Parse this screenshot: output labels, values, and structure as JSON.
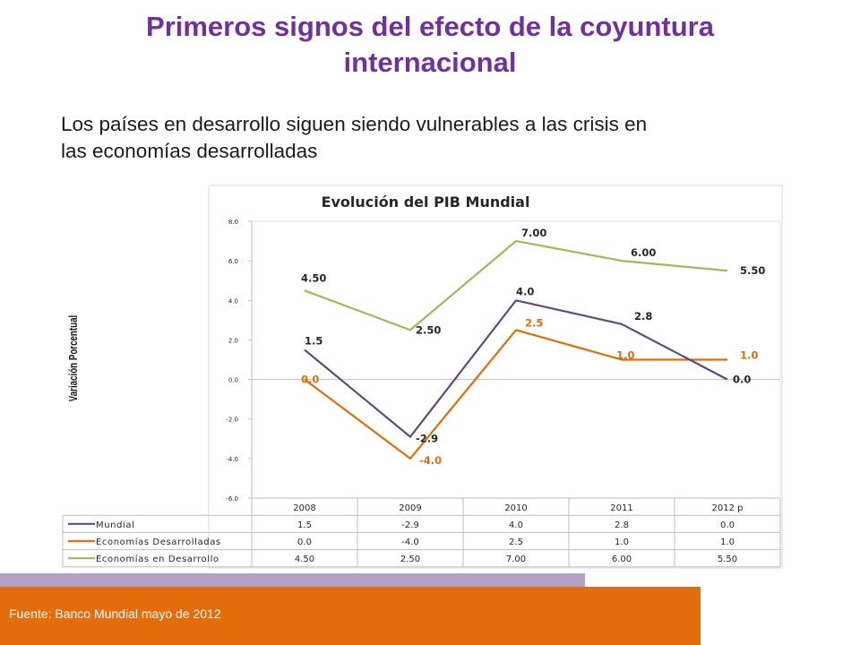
{
  "slide": {
    "title_line1": "Primeros signos del efecto de la coyuntura",
    "title_line2": "internacional",
    "subtitle_line1": "Los países en desarrollo siguen siendo vulnerables a las crisis en",
    "subtitle_line2": "las economías desarrolladas",
    "source": "Fuente:  Banco Mundial mayo de 2012"
  },
  "chart_data": {
    "type": "line",
    "title": "Evolución del PIB Mundial",
    "ylabel": "Variación Porcentual",
    "ylim": [
      -6.0,
      8.0
    ],
    "yticks": [
      "8.0",
      "6.0",
      "4.0",
      "2.0",
      "0.0",
      "-2.0",
      "-4.0",
      "-6.0"
    ],
    "ytick_values": [
      8,
      6,
      4,
      2,
      0,
      -2,
      -4,
      -6
    ],
    "categories": [
      "2008",
      "2009",
      "2010",
      "2011",
      "2012 p"
    ],
    "series": [
      {
        "name": "Mundial",
        "color": "#604a7b",
        "values": [
          1.5,
          -2.9,
          4.0,
          2.8,
          0.0
        ],
        "labels": [
          "1.5",
          "-2.9",
          "4.0",
          "2.8",
          "0.0"
        ],
        "label_color": "#262626"
      },
      {
        "name": "Economías Desarrolladas",
        "color": "#e46c0a",
        "values": [
          0.0,
          -4.0,
          2.5,
          1.0,
          1.0
        ],
        "labels": [
          "0.0",
          "-4.0",
          "2.5",
          "1.0",
          "1.0"
        ],
        "label_color": "#e46c0a"
      },
      {
        "name": "Economías en Desarrollo",
        "color": "#9bbb59",
        "values": [
          4.5,
          2.5,
          7.0,
          6.0,
          5.5
        ],
        "labels": [
          "4.50",
          "2.50",
          "7.00",
          "6.00",
          "5.50"
        ],
        "label_color": "#262626"
      }
    ],
    "table_rows": [
      [
        "1.5",
        "-2.9",
        "4.0",
        "2.8",
        "0.0"
      ],
      [
        "0.0",
        "-4.0",
        "2.5",
        "1.0",
        "1.0"
      ],
      [
        "4.50",
        "2.50",
        "7.00",
        "6.00",
        "5.50"
      ]
    ],
    "grid": false,
    "legend": "data-table"
  }
}
